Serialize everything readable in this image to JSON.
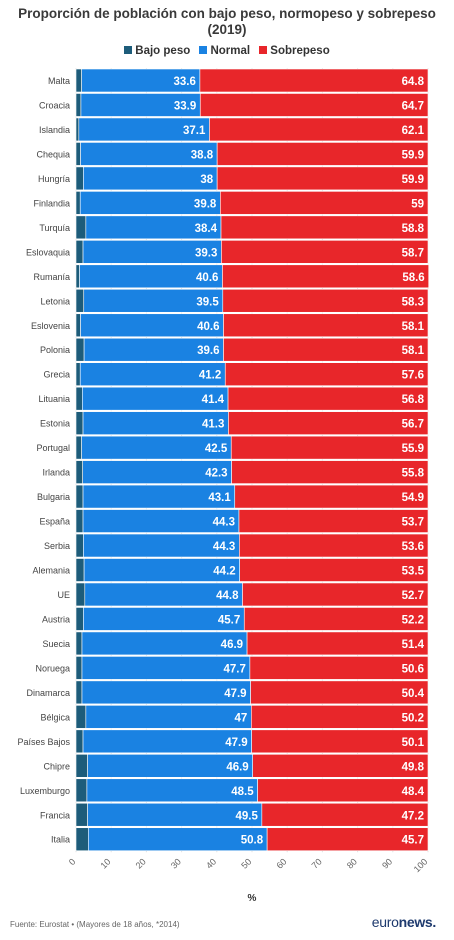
{
  "title_line1": "Proporción de población con bajo peso, normopeso y sobrepeso",
  "title_line2": "(2019)",
  "legend": [
    {
      "label": "Bajo peso",
      "color": "#1d5c7a"
    },
    {
      "label": "Normal",
      "color": "#1a82e2"
    },
    {
      "label": "Sobrepeso",
      "color": "#e8262a"
    }
  ],
  "footer": {
    "source": "Fuente: Eurostat • (Mayores de 18 años, *2014)"
  },
  "logo": {
    "part1": "euro",
    "part2": "news."
  },
  "chart_data": {
    "type": "bar",
    "orientation": "horizontal",
    "stacked": true,
    "xlabel": "%",
    "xlim": [
      0,
      100
    ],
    "xticks": [
      0,
      10,
      20,
      30,
      40,
      50,
      60,
      70,
      80,
      90,
      100
    ],
    "categories": [
      "Malta",
      "Croacia",
      "Islandia",
      "Chequia",
      "Hungría",
      "Finlandia",
      "Turquía",
      "Eslovaquia",
      "Rumanía",
      "Letonia",
      "Eslovenia",
      "Polonia",
      "Grecia",
      "Lituania",
      "Estonia",
      "Portugal",
      "Irlanda",
      "Bulgaria",
      "España",
      "Serbia",
      "Alemania",
      "UE",
      "Austria",
      "Suecia",
      "Noruega",
      "Dinamarca",
      "Bélgica",
      "Países Bajos",
      "Chipre",
      "Luxemburgo",
      "Francia",
      "Italia"
    ],
    "series": [
      {
        "name": "Bajo peso",
        "color": "#1d5c7a",
        "values": [
          1.6,
          1.4,
          0.8,
          1.3,
          2.1,
          1.2,
          2.8,
          2.0,
          1.0,
          2.2,
          1.3,
          2.3,
          1.2,
          1.8,
          2.0,
          1.6,
          1.9,
          2.0,
          2.0,
          2.1,
          2.3,
          2.5,
          2.1,
          1.7,
          1.7,
          1.7,
          2.8,
          2.0,
          3.3,
          3.1,
          3.3,
          3.5
        ]
      },
      {
        "name": "Normal",
        "color": "#1a82e2",
        "values": [
          33.6,
          33.9,
          37.1,
          38.8,
          38,
          39.8,
          38.4,
          39.3,
          40.6,
          39.5,
          40.6,
          39.6,
          41.2,
          41.4,
          41.3,
          42.5,
          42.3,
          43.1,
          44.3,
          44.3,
          44.2,
          44.8,
          45.7,
          46.9,
          47.7,
          47.9,
          47,
          47.9,
          46.9,
          48.5,
          49.5,
          50.8
        ]
      },
      {
        "name": "Sobrepeso",
        "color": "#e8262a",
        "values": [
          64.8,
          64.7,
          62.1,
          59.9,
          59.9,
          59,
          58.8,
          58.7,
          58.6,
          58.3,
          58.1,
          58.1,
          57.6,
          56.8,
          56.7,
          55.9,
          55.8,
          54.9,
          53.7,
          53.6,
          53.5,
          52.7,
          52.2,
          51.4,
          50.6,
          50.4,
          50.2,
          50.1,
          49.8,
          48.4,
          47.2,
          45.7
        ]
      }
    ],
    "data_labels": [
      "Normal",
      "Sobrepeso"
    ]
  }
}
